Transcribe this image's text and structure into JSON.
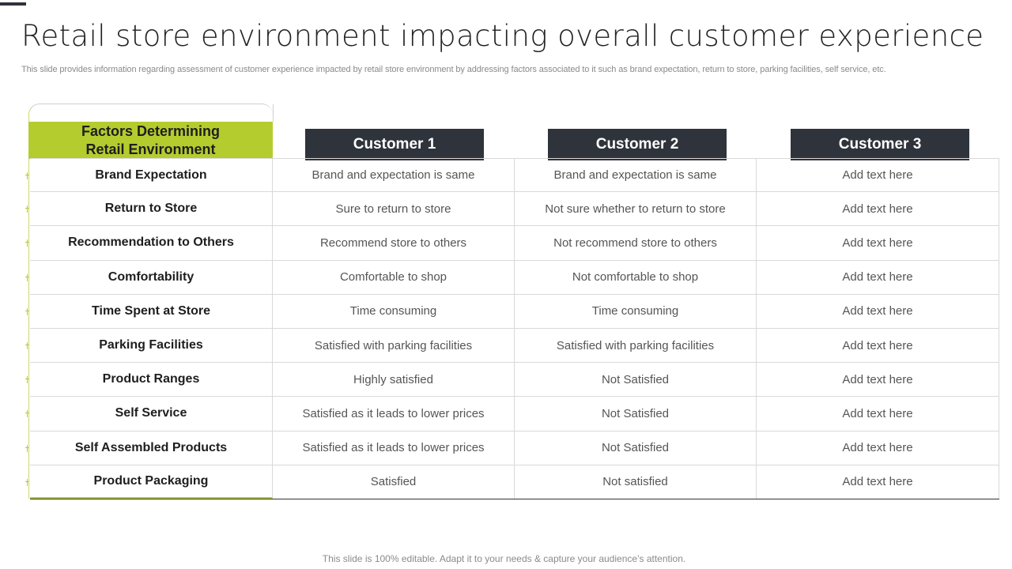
{
  "title": "Retail store environment impacting overall customer experience",
  "subtitle": "This slide provides information regarding assessment of customer experience impacted by retail store environment by addressing factors associated to it such as brand expectation, return to store, parking facilities, self service, etc.",
  "table": {
    "factor_header_line1": "Factors Determining",
    "factor_header_line2": "Retail Environment",
    "customer_headers": [
      "Customer 1",
      "Customer 2",
      "Customer 3"
    ],
    "rows": [
      {
        "factor": "Brand Expectation",
        "c1": "Brand and expectation is same",
        "c2": "Brand and expectation is same",
        "c3": "Add text here"
      },
      {
        "factor": "Return to Store",
        "c1": "Sure to return to store",
        "c2": "Not sure whether to return to store",
        "c3": "Add text here"
      },
      {
        "factor": "Recommendation to Others",
        "c1": "Recommend store to others",
        "c2": "Not recommend store to others",
        "c3": "Add text here"
      },
      {
        "factor": "Comfortability",
        "c1": "Comfortable to shop",
        "c2": "Not comfortable to shop",
        "c3": "Add text here"
      },
      {
        "factor": "Time Spent at Store",
        "c1": "Time consuming",
        "c2": "Time consuming",
        "c3": "Add text here"
      },
      {
        "factor": "Parking Facilities",
        "c1": "Satisfied with parking facilities",
        "c2": "Satisfied with parking facilities",
        "c3": "Add text here"
      },
      {
        "factor": "Product Ranges",
        "c1": "Highly satisfied",
        "c2": "Not Satisfied",
        "c3": "Add text here"
      },
      {
        "factor": "Self Service",
        "c1": "Satisfied as it leads to lower prices",
        "c2": "Not Satisfied",
        "c3": "Add text here"
      },
      {
        "factor": "Self Assembled Products",
        "c1": "Satisfied as it leads to lower prices",
        "c2": "Not Satisfied",
        "c3": "Add text here"
      },
      {
        "factor": "Product Packaging",
        "c1": "Satisfied",
        "c2": "Not satisfied",
        "c3": "Add text here"
      }
    ]
  },
  "footer": "This slide is 100% editable. Adapt it to your needs & capture your audience’s attention.",
  "colors": {
    "accent_green": "#b5cc2f",
    "header_dark": "#2f333b"
  }
}
